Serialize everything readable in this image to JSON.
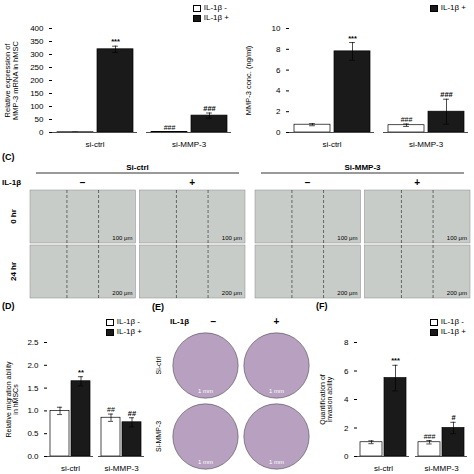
{
  "chart_data": [
    {
      "type": "bar",
      "ylabel": "Relative expression of\nMMP-3 mRNA in hMSC",
      "categories": [
        "si-ctrl",
        "si-MMP-3"
      ],
      "series": [
        {
          "name": "IL-1β -",
          "color": "#ffffff",
          "values": [
            1.0,
            2.5
          ],
          "errors": [
            0.3,
            0.5
          ],
          "annotations": [
            null,
            "###"
          ]
        },
        {
          "name": "IL-1β +",
          "color": "#1a1a1a",
          "values": [
            320.0,
            65.0
          ],
          "errors": [
            12.0,
            10.0
          ],
          "annotations": [
            "***",
            "###"
          ]
        }
      ],
      "ylim": [
        0,
        400
      ],
      "yticks": [
        0,
        50,
        100,
        150,
        200,
        250,
        300,
        350,
        400
      ],
      "legend": "upper right",
      "edge_color": "#000000"
    },
    {
      "type": "bar",
      "ylabel": "MMP-3 conc. (ng/ml)",
      "categories": [
        "si-ctrl",
        "si-MMP-3"
      ],
      "series": [
        {
          "color": "#ffffff",
          "values": [
            0.75,
            0.7
          ],
          "errors": [
            0.1,
            0.12
          ],
          "annotations": [
            null,
            "###"
          ]
        },
        {
          "name": "IL-1β +",
          "color": "#1a1a1a",
          "values": [
            7.8,
            2.0
          ],
          "errors": [
            0.85,
            1.2
          ],
          "annotations": [
            "***",
            "###"
          ]
        }
      ],
      "ylim": [
        0,
        10
      ],
      "yticks": [
        0,
        2,
        4,
        6,
        8,
        10
      ],
      "legend": "upper right",
      "edge_color": "#000000"
    },
    {
      "type": "image",
      "title": "(C)",
      "marker": "square",
      "groups": [
        "Si-ctrl",
        "Si-MMP-3"
      ],
      "row_header": "IL-1β",
      "columns": [
        "−",
        "+",
        "−",
        "+"
      ],
      "rows": [
        "0 hr",
        "24 hr"
      ],
      "scale_labels": [
        "100 μm",
        "200 μm"
      ],
      "color": "#c8ccc8"
    },
    {
      "type": "bar",
      "title": "(D)",
      "ylabel": "Relative migration ability\nin hMSCs",
      "categories": [
        "si-ctrl",
        "si-MMP-3"
      ],
      "series": [
        {
          "name": "IL-1β -",
          "color": "#ffffff",
          "values": [
            1.0,
            0.85
          ],
          "errors": [
            0.08,
            0.08
          ],
          "annotations": [
            null,
            "##"
          ]
        },
        {
          "name": "IL-1β +",
          "color": "#1a1a1a",
          "values": [
            1.65,
            0.75
          ],
          "errors": [
            0.1,
            0.1
          ],
          "annotations": [
            "**",
            "##"
          ]
        }
      ],
      "ylim": [
        0,
        2.5
      ],
      "yticks": [
        {
          "value": 0,
          "label": "0.0"
        },
        0.5,
        {
          "value": 1,
          "label": "1.0"
        },
        1.5,
        {
          "value": 2,
          "label": "2.0"
        },
        2.5
      ],
      "legend": "upper right",
      "edge_color": "#000000"
    },
    {
      "type": "image",
      "title": "(E)",
      "marker": "circle",
      "row_header": "IL-1β",
      "columns": [
        "−",
        "+"
      ],
      "rows": [
        "Si-ctrl",
        "Si-MMP-3"
      ],
      "scale_labels": [
        "1 mm",
        "1 mm"
      ],
      "color": "#b8a0c0"
    },
    {
      "type": "bar",
      "title": "(F)",
      "ylabel": "Quantification of\ninvasion ability",
      "categories": [
        "si-ctrl",
        "si-MMP-3"
      ],
      "series": [
        {
          "name": "IL-1β -",
          "color": "#ffffff",
          "values": [
            1.0,
            1.0
          ],
          "errors": [
            0.1,
            0.12
          ],
          "annotations": [
            null,
            "###"
          ]
        },
        {
          "name": "IL-1β +",
          "color": "#1a1a1a",
          "values": [
            5.5,
            2.0
          ],
          "errors": [
            0.9,
            0.4
          ],
          "annotations": [
            "***",
            "#"
          ]
        }
      ],
      "ylim": [
        0,
        8
      ],
      "yticks": [
        0,
        2,
        4,
        6,
        8
      ],
      "legend": "upper right",
      "edge_color": "#000000"
    }
  ]
}
